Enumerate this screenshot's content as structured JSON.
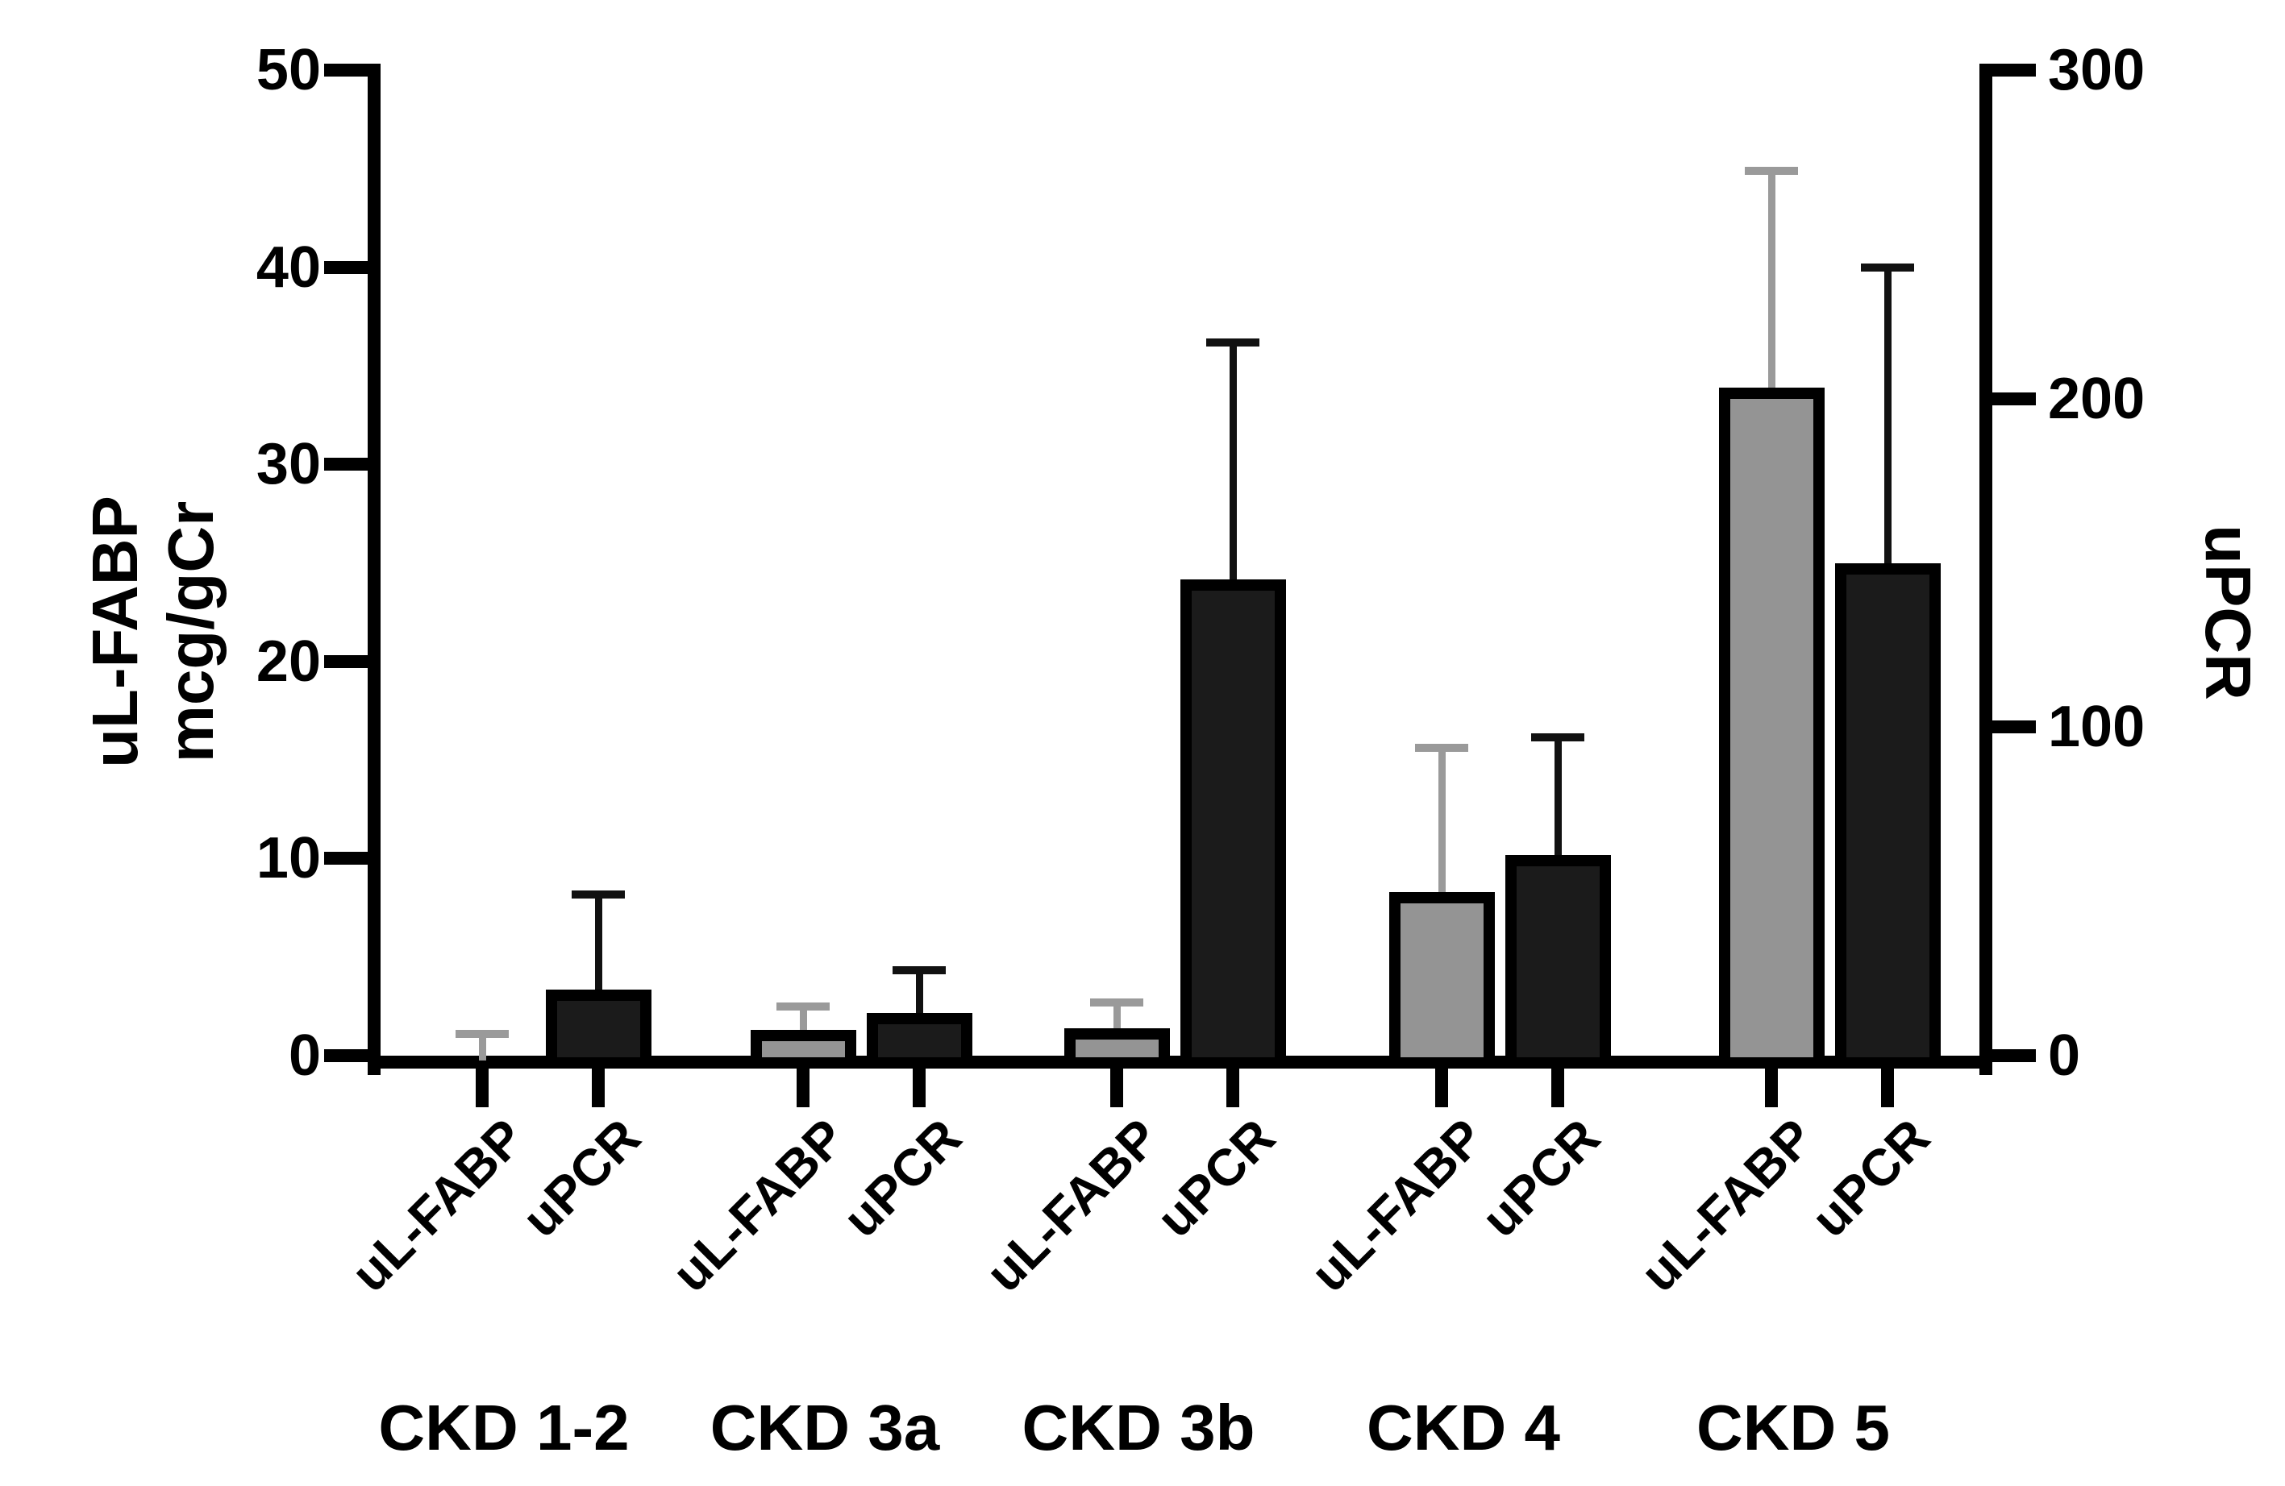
{
  "figure": {
    "background": "#ffffff",
    "bar_outline_color": "#000000"
  },
  "chart_data": {
    "type": "bar",
    "title": "",
    "categories": [
      "CKD 1-2",
      "CKD 3a",
      "CKD 3b",
      "CKD 4",
      "CKD 5"
    ],
    "bar_tick_labels": [
      "uL-FABP",
      "uPCR"
    ],
    "series": [
      {
        "name": "uL-FABP",
        "axis": "left",
        "fill_color": "#949494",
        "error_color": "#9a9a9a",
        "values": [
          0.1,
          1.3,
          1.4,
          8.3,
          33.9
        ],
        "error_top": [
          1.1,
          2.5,
          2.7,
          15.6,
          44.9
        ]
      },
      {
        "name": "uPCR",
        "axis": "right",
        "fill_color": "#1b1b1b",
        "error_color": "#111111",
        "values": [
          20,
          13,
          145,
          61,
          150
        ],
        "error_top": [
          49,
          26,
          217,
          97,
          240
        ]
      }
    ],
    "left_axis": {
      "title_lines": [
        "uL-FABP",
        "mcg/gCr"
      ],
      "ticks": [
        0,
        10,
        20,
        30,
        40,
        50
      ],
      "range": [
        0,
        50
      ]
    },
    "right_axis": {
      "title": "uPCR",
      "ticks": [
        0,
        100,
        200,
        300
      ],
      "range": [
        0,
        300
      ]
    },
    "legend": "none",
    "grid": false,
    "error_bars": "upper only, cap on top"
  }
}
